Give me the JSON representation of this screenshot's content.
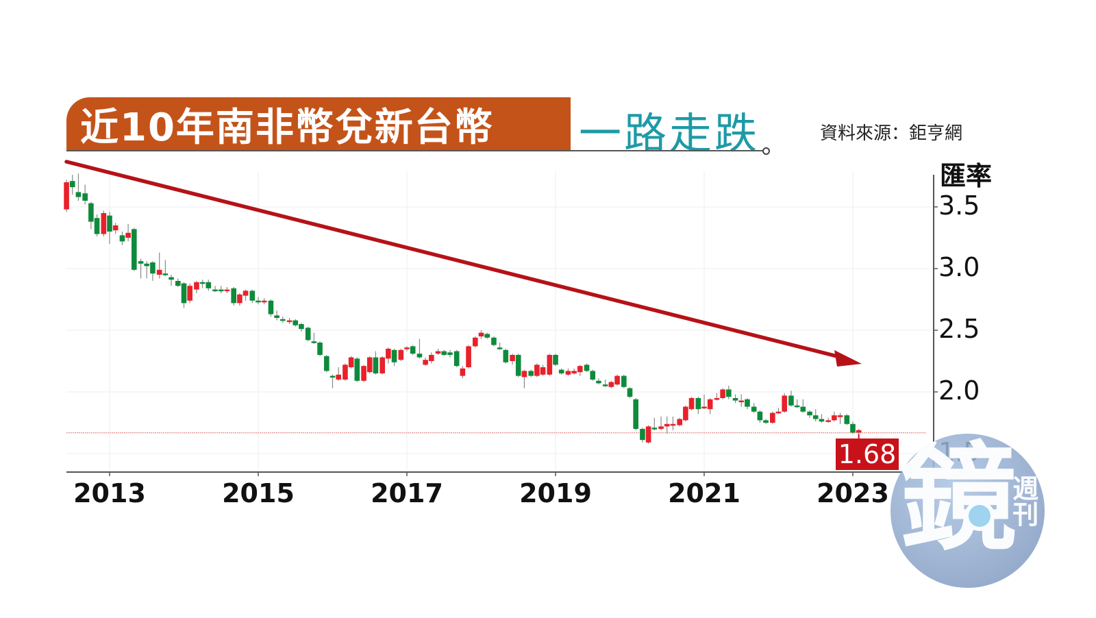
{
  "header": {
    "title_main": "近10年南非幣兌新台幣",
    "title_sub": "一路走跌",
    "source": "資料來源：鉅亨網"
  },
  "colors": {
    "title_bg": "#c4531a",
    "title_sub": "#1d9aa6",
    "up": "#e8212a",
    "down": "#0e8a3c",
    "trend_arrow": "#b51218",
    "last_badge": "#c8121a",
    "ref_line": "#e89a9a"
  },
  "watermark": {
    "main": "鏡",
    "side": "週刊"
  },
  "chart_data": {
    "type": "candlestick",
    "title": "近10年南非幣兌新台幣 一路走跌",
    "xlabel": "",
    "ylabel": "匯率",
    "ylim": [
      1.4,
      3.9
    ],
    "yticks": [
      "3.5",
      "3.0",
      "2.5",
      "2.0",
      "1.5"
    ],
    "ytick_values": [
      3.5,
      3.0,
      2.5,
      2.0,
      1.5
    ],
    "xticks": [
      "2013",
      "2015",
      "2017",
      "2019",
      "2021",
      "2023"
    ],
    "xtick_values": [
      2013,
      2015,
      2017,
      2019,
      2021,
      2023
    ],
    "x_range": [
      2012.42,
      2023.3
    ],
    "last_value": "1.68",
    "reference_line": 1.68,
    "annotation": "downtrend arrow from top-left (2012.4, 3.85) to (2023.1, 2.36)",
    "candles": [
      {
        "t": 2012.42,
        "o": 3.48,
        "c": 3.7,
        "h": 3.72,
        "l": 3.46
      },
      {
        "t": 2012.5,
        "o": 3.71,
        "c": 3.66,
        "h": 3.76,
        "l": 3.6
      },
      {
        "t": 2012.58,
        "o": 3.62,
        "c": 3.58,
        "h": 3.77,
        "l": 3.55
      },
      {
        "t": 2012.67,
        "o": 3.61,
        "c": 3.55,
        "h": 3.68,
        "l": 3.52
      },
      {
        "t": 2012.75,
        "o": 3.53,
        "c": 3.38,
        "h": 3.54,
        "l": 3.32
      },
      {
        "t": 2012.83,
        "o": 3.41,
        "c": 3.28,
        "h": 3.44,
        "l": 3.26
      },
      {
        "t": 2012.92,
        "o": 3.28,
        "c": 3.45,
        "h": 3.47,
        "l": 3.26
      },
      {
        "t": 2013.0,
        "o": 3.43,
        "c": 3.3,
        "h": 3.46,
        "l": 3.2
      },
      {
        "t": 2013.08,
        "o": 3.31,
        "c": 3.35,
        "h": 3.37,
        "l": 3.28
      },
      {
        "t": 2013.17,
        "o": 3.27,
        "c": 3.22,
        "h": 3.3,
        "l": 3.19
      },
      {
        "t": 2013.25,
        "o": 3.25,
        "c": 3.29,
        "h": 3.36,
        "l": 3.22
      },
      {
        "t": 2013.33,
        "o": 3.32,
        "c": 2.99,
        "h": 3.33,
        "l": 2.98
      },
      {
        "t": 2013.42,
        "o": 3.06,
        "c": 3.04,
        "h": 3.08,
        "l": 2.92
      },
      {
        "t": 2013.5,
        "o": 3.04,
        "c": 3.02,
        "h": 3.06,
        "l": 2.92
      },
      {
        "t": 2013.58,
        "o": 3.05,
        "c": 2.96,
        "h": 3.06,
        "l": 2.9
      },
      {
        "t": 2013.67,
        "o": 2.95,
        "c": 2.99,
        "h": 3.13,
        "l": 2.92
      },
      {
        "t": 2013.75,
        "o": 2.96,
        "c": 2.95,
        "h": 3.07,
        "l": 2.94
      },
      {
        "t": 2013.83,
        "o": 2.93,
        "c": 2.91,
        "h": 2.95,
        "l": 2.86
      },
      {
        "t": 2013.92,
        "o": 2.9,
        "c": 2.86,
        "h": 2.92,
        "l": 2.85
      },
      {
        "t": 2014.0,
        "o": 2.88,
        "c": 2.72,
        "h": 2.89,
        "l": 2.68
      },
      {
        "t": 2014.08,
        "o": 2.74,
        "c": 2.86,
        "h": 2.88,
        "l": 2.72
      },
      {
        "t": 2014.17,
        "o": 2.83,
        "c": 2.89,
        "h": 2.9,
        "l": 2.8
      },
      {
        "t": 2014.25,
        "o": 2.89,
        "c": 2.88,
        "h": 2.91,
        "l": 2.84
      },
      {
        "t": 2014.33,
        "o": 2.89,
        "c": 2.84,
        "h": 2.91,
        "l": 2.82
      },
      {
        "t": 2014.42,
        "o": 2.83,
        "c": 2.82,
        "h": 2.86,
        "l": 2.81
      },
      {
        "t": 2014.5,
        "o": 2.83,
        "c": 2.82,
        "h": 2.86,
        "l": 2.8
      },
      {
        "t": 2014.58,
        "o": 2.82,
        "c": 2.83,
        "h": 2.85,
        "l": 2.8
      },
      {
        "t": 2014.67,
        "o": 2.84,
        "c": 2.72,
        "h": 2.85,
        "l": 2.7
      },
      {
        "t": 2014.75,
        "o": 2.72,
        "c": 2.79,
        "h": 2.8,
        "l": 2.7
      },
      {
        "t": 2014.83,
        "o": 2.78,
        "c": 2.82,
        "h": 2.83,
        "l": 2.74
      },
      {
        "t": 2014.92,
        "o": 2.82,
        "c": 2.74,
        "h": 2.83,
        "l": 2.72
      },
      {
        "t": 2015.0,
        "o": 2.74,
        "c": 2.73,
        "h": 2.77,
        "l": 2.71
      },
      {
        "t": 2015.08,
        "o": 2.73,
        "c": 2.74,
        "h": 2.76,
        "l": 2.71
      },
      {
        "t": 2015.17,
        "o": 2.74,
        "c": 2.63,
        "h": 2.75,
        "l": 2.61
      },
      {
        "t": 2015.25,
        "o": 2.62,
        "c": 2.6,
        "h": 2.66,
        "l": 2.58
      },
      {
        "t": 2015.33,
        "o": 2.59,
        "c": 2.58,
        "h": 2.61,
        "l": 2.56
      },
      {
        "t": 2015.42,
        "o": 2.58,
        "c": 2.58,
        "h": 2.6,
        "l": 2.55
      },
      {
        "t": 2015.5,
        "o": 2.58,
        "c": 2.54,
        "h": 2.59,
        "l": 2.53
      },
      {
        "t": 2015.58,
        "o": 2.55,
        "c": 2.51,
        "h": 2.56,
        "l": 2.49
      },
      {
        "t": 2015.67,
        "o": 2.52,
        "c": 2.42,
        "h": 2.53,
        "l": 2.41
      },
      {
        "t": 2015.75,
        "o": 2.41,
        "c": 2.4,
        "h": 2.48,
        "l": 2.39
      },
      {
        "t": 2015.83,
        "o": 2.4,
        "c": 2.3,
        "h": 2.41,
        "l": 2.29
      },
      {
        "t": 2015.92,
        "o": 2.29,
        "c": 2.17,
        "h": 2.3,
        "l": 2.16
      },
      {
        "t": 2016.0,
        "o": 2.13,
        "c": 2.12,
        "h": 2.14,
        "l": 2.03
      },
      {
        "t": 2016.08,
        "o": 2.1,
        "c": 2.14,
        "h": 2.2,
        "l": 2.09
      },
      {
        "t": 2016.17,
        "o": 2.1,
        "c": 2.22,
        "h": 2.23,
        "l": 2.09
      },
      {
        "t": 2016.25,
        "o": 2.2,
        "c": 2.28,
        "h": 2.29,
        "l": 2.19
      },
      {
        "t": 2016.33,
        "o": 2.27,
        "c": 2.09,
        "h": 2.28,
        "l": 2.08
      },
      {
        "t": 2016.42,
        "o": 2.09,
        "c": 2.21,
        "h": 2.22,
        "l": 2.08
      },
      {
        "t": 2016.5,
        "o": 2.16,
        "c": 2.28,
        "h": 2.29,
        "l": 2.15
      },
      {
        "t": 2016.58,
        "o": 2.28,
        "c": 2.15,
        "h": 2.33,
        "l": 2.14
      },
      {
        "t": 2016.67,
        "o": 2.15,
        "c": 2.28,
        "h": 2.29,
        "l": 2.14
      },
      {
        "t": 2016.75,
        "o": 2.27,
        "c": 2.35,
        "h": 2.36,
        "l": 2.23
      },
      {
        "t": 2016.83,
        "o": 2.34,
        "c": 2.24,
        "h": 2.35,
        "l": 2.21
      },
      {
        "t": 2016.92,
        "o": 2.26,
        "c": 2.34,
        "h": 2.35,
        "l": 2.25
      },
      {
        "t": 2017.0,
        "o": 2.35,
        "c": 2.36,
        "h": 2.37,
        "l": 2.33
      },
      {
        "t": 2017.08,
        "o": 2.37,
        "c": 2.31,
        "h": 2.38,
        "l": 2.3
      },
      {
        "t": 2017.17,
        "o": 2.31,
        "c": 2.28,
        "h": 2.43,
        "l": 2.27
      },
      {
        "t": 2017.25,
        "o": 2.22,
        "c": 2.26,
        "h": 2.28,
        "l": 2.21
      },
      {
        "t": 2017.33,
        "o": 2.25,
        "c": 2.3,
        "h": 2.32,
        "l": 2.23
      },
      {
        "t": 2017.42,
        "o": 2.31,
        "c": 2.33,
        "h": 2.35,
        "l": 2.3
      },
      {
        "t": 2017.5,
        "o": 2.33,
        "c": 2.3,
        "h": 2.34,
        "l": 2.29
      },
      {
        "t": 2017.58,
        "o": 2.32,
        "c": 2.3,
        "h": 2.34,
        "l": 2.28
      },
      {
        "t": 2017.67,
        "o": 2.33,
        "c": 2.21,
        "h": 2.34,
        "l": 2.2
      },
      {
        "t": 2017.75,
        "o": 2.13,
        "c": 2.19,
        "h": 2.21,
        "l": 2.11
      },
      {
        "t": 2017.83,
        "o": 2.2,
        "c": 2.37,
        "h": 2.38,
        "l": 2.19
      },
      {
        "t": 2017.92,
        "o": 2.37,
        "c": 2.44,
        "h": 2.45,
        "l": 2.36
      },
      {
        "t": 2018.0,
        "o": 2.45,
        "c": 2.48,
        "h": 2.5,
        "l": 2.43
      },
      {
        "t": 2018.08,
        "o": 2.47,
        "c": 2.44,
        "h": 2.48,
        "l": 2.43
      },
      {
        "t": 2018.17,
        "o": 2.44,
        "c": 2.38,
        "h": 2.45,
        "l": 2.37
      },
      {
        "t": 2018.25,
        "o": 2.36,
        "c": 2.35,
        "h": 2.4,
        "l": 2.34
      },
      {
        "t": 2018.33,
        "o": 2.34,
        "c": 2.24,
        "h": 2.35,
        "l": 2.23
      },
      {
        "t": 2018.42,
        "o": 2.25,
        "c": 2.3,
        "h": 2.31,
        "l": 2.22
      },
      {
        "t": 2018.5,
        "o": 2.3,
        "c": 2.13,
        "h": 2.31,
        "l": 2.12
      },
      {
        "t": 2018.58,
        "o": 2.12,
        "c": 2.17,
        "h": 2.18,
        "l": 2.03
      },
      {
        "t": 2018.67,
        "o": 2.17,
        "c": 2.13,
        "h": 2.18,
        "l": 2.12
      },
      {
        "t": 2018.75,
        "o": 2.13,
        "c": 2.22,
        "h": 2.23,
        "l": 2.12
      },
      {
        "t": 2018.83,
        "o": 2.14,
        "c": 2.2,
        "h": 2.22,
        "l": 2.13
      },
      {
        "t": 2018.92,
        "o": 2.14,
        "c": 2.3,
        "h": 2.31,
        "l": 2.13
      },
      {
        "t": 2019.0,
        "o": 2.3,
        "c": 2.22,
        "h": 2.31,
        "l": 2.21
      },
      {
        "t": 2019.08,
        "o": 2.18,
        "c": 2.15,
        "h": 2.19,
        "l": 2.14
      },
      {
        "t": 2019.17,
        "o": 2.14,
        "c": 2.17,
        "h": 2.19,
        "l": 2.13
      },
      {
        "t": 2019.25,
        "o": 2.15,
        "c": 2.17,
        "h": 2.19,
        "l": 2.14
      },
      {
        "t": 2019.33,
        "o": 2.16,
        "c": 2.21,
        "h": 2.22,
        "l": 2.13
      },
      {
        "t": 2019.42,
        "o": 2.22,
        "c": 2.17,
        "h": 2.23,
        "l": 2.16
      },
      {
        "t": 2019.5,
        "o": 2.17,
        "c": 2.1,
        "h": 2.18,
        "l": 2.09
      },
      {
        "t": 2019.58,
        "o": 2.09,
        "c": 2.07,
        "h": 2.11,
        "l": 2.06
      },
      {
        "t": 2019.67,
        "o": 2.06,
        "c": 2.05,
        "h": 2.1,
        "l": 2.04
      },
      {
        "t": 2019.75,
        "o": 2.04,
        "c": 2.08,
        "h": 2.09,
        "l": 2.03
      },
      {
        "t": 2019.83,
        "o": 2.06,
        "c": 2.13,
        "h": 2.14,
        "l": 2.05
      },
      {
        "t": 2019.92,
        "o": 2.13,
        "c": 2.04,
        "h": 2.14,
        "l": 2.03
      },
      {
        "t": 2020.0,
        "o": 2.03,
        "c": 1.96,
        "h": 2.04,
        "l": 1.95
      },
      {
        "t": 2020.08,
        "o": 1.94,
        "c": 1.7,
        "h": 1.95,
        "l": 1.69
      },
      {
        "t": 2020.17,
        "o": 1.7,
        "c": 1.61,
        "h": 1.71,
        "l": 1.59
      },
      {
        "t": 2020.25,
        "o": 1.59,
        "c": 1.72,
        "h": 1.73,
        "l": 1.58
      },
      {
        "t": 2020.33,
        "o": 1.71,
        "c": 1.7,
        "h": 1.79,
        "l": 1.69
      },
      {
        "t": 2020.42,
        "o": 1.7,
        "c": 1.72,
        "h": 1.8,
        "l": 1.69
      },
      {
        "t": 2020.5,
        "o": 1.72,
        "c": 1.74,
        "h": 1.8,
        "l": 1.66
      },
      {
        "t": 2020.58,
        "o": 1.73,
        "c": 1.74,
        "h": 1.8,
        "l": 1.69
      },
      {
        "t": 2020.67,
        "o": 1.73,
        "c": 1.78,
        "h": 1.79,
        "l": 1.72
      },
      {
        "t": 2020.75,
        "o": 1.77,
        "c": 1.88,
        "h": 1.89,
        "l": 1.76
      },
      {
        "t": 2020.83,
        "o": 1.86,
        "c": 1.95,
        "h": 1.96,
        "l": 1.85
      },
      {
        "t": 2020.92,
        "o": 1.95,
        "c": 1.86,
        "h": 1.96,
        "l": 1.82
      },
      {
        "t": 2021.0,
        "o": 1.88,
        "c": 1.88,
        "h": 1.98,
        "l": 1.86
      },
      {
        "t": 2021.08,
        "o": 1.86,
        "c": 1.94,
        "h": 1.95,
        "l": 1.82
      },
      {
        "t": 2021.17,
        "o": 1.94,
        "c": 1.95,
        "h": 1.99,
        "l": 1.93
      },
      {
        "t": 2021.25,
        "o": 1.95,
        "c": 2.02,
        "h": 2.03,
        "l": 1.94
      },
      {
        "t": 2021.33,
        "o": 2.02,
        "c": 1.96,
        "h": 2.05,
        "l": 1.94
      },
      {
        "t": 2021.42,
        "o": 1.95,
        "c": 1.93,
        "h": 1.98,
        "l": 1.91
      },
      {
        "t": 2021.5,
        "o": 1.93,
        "c": 1.93,
        "h": 1.98,
        "l": 1.88
      },
      {
        "t": 2021.58,
        "o": 1.94,
        "c": 1.88,
        "h": 1.95,
        "l": 1.86
      },
      {
        "t": 2021.67,
        "o": 1.88,
        "c": 1.84,
        "h": 1.91,
        "l": 1.83
      },
      {
        "t": 2021.75,
        "o": 1.84,
        "c": 1.77,
        "h": 1.85,
        "l": 1.75
      },
      {
        "t": 2021.83,
        "o": 1.77,
        "c": 1.75,
        "h": 1.78,
        "l": 1.74
      },
      {
        "t": 2021.92,
        "o": 1.75,
        "c": 1.83,
        "h": 1.84,
        "l": 1.74
      },
      {
        "t": 2022.0,
        "o": 1.83,
        "c": 1.84,
        "h": 1.87,
        "l": 1.82
      },
      {
        "t": 2022.08,
        "o": 1.84,
        "c": 1.97,
        "h": 1.99,
        "l": 1.83
      },
      {
        "t": 2022.17,
        "o": 1.97,
        "c": 1.89,
        "h": 2.01,
        "l": 1.88
      },
      {
        "t": 2022.25,
        "o": 1.89,
        "c": 1.88,
        "h": 1.94,
        "l": 1.87
      },
      {
        "t": 2022.33,
        "o": 1.88,
        "c": 1.84,
        "h": 1.94,
        "l": 1.83
      },
      {
        "t": 2022.42,
        "o": 1.84,
        "c": 1.81,
        "h": 1.85,
        "l": 1.79
      },
      {
        "t": 2022.5,
        "o": 1.81,
        "c": 1.78,
        "h": 1.86,
        "l": 1.76
      },
      {
        "t": 2022.58,
        "o": 1.78,
        "c": 1.76,
        "h": 1.82,
        "l": 1.75
      },
      {
        "t": 2022.67,
        "o": 1.76,
        "c": 1.77,
        "h": 1.79,
        "l": 1.75
      },
      {
        "t": 2022.75,
        "o": 1.77,
        "c": 1.81,
        "h": 1.84,
        "l": 1.76
      },
      {
        "t": 2022.83,
        "o": 1.8,
        "c": 1.81,
        "h": 1.83,
        "l": 1.74
      },
      {
        "t": 2022.92,
        "o": 1.81,
        "c": 1.74,
        "h": 1.82,
        "l": 1.73
      },
      {
        "t": 2023.0,
        "o": 1.74,
        "c": 1.67,
        "h": 1.76,
        "l": 1.66
      },
      {
        "t": 2023.08,
        "o": 1.67,
        "c": 1.69,
        "h": 1.7,
        "l": 1.65
      }
    ]
  }
}
